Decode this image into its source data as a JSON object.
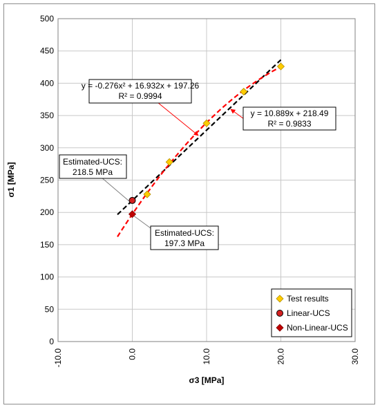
{
  "colors": {
    "test_marker": "#ffcc00",
    "linear_ucs_marker": "#d42020",
    "nonlinear_ucs_marker": "#c00000",
    "linear_fit_line": "#000000",
    "poly_fit_line": "#ff0000",
    "arrow": "#ff0000",
    "grid": "#c8c8c8"
  },
  "annotations": {
    "poly_eq_line1": "y = -0.276x² + 16.932x + 197.26",
    "poly_eq_line2": "R² = 0.9994",
    "lin_eq_line1": "y = 10.889x + 218.49",
    "lin_eq_line2": "R² = 0.9833",
    "est_ucs_linear_line1": "Estimated-UCS:",
    "est_ucs_linear_line2": "218.5 MPa",
    "est_ucs_nonlinear_line1": "Estimated-UCS:",
    "est_ucs_nonlinear_line2": "197.3 MPa"
  },
  "chart_data": {
    "type": "scatter",
    "title": "",
    "xlabel": "σ3 [MPa]",
    "ylabel": "σ1 [MPa]",
    "xlim": [
      -10,
      30
    ],
    "ylim": [
      0,
      500
    ],
    "x_ticks": [
      "-10.0",
      "0.0",
      "10.0",
      "20.0",
      "30.0"
    ],
    "y_ticks": [
      "0",
      "50",
      "100",
      "150",
      "200",
      "250",
      "300",
      "350",
      "400",
      "450",
      "500"
    ],
    "grid": true,
    "legend_position": "bottom-right",
    "series": [
      {
        "name": "Test results",
        "marker": "diamond",
        "points": [
          [
            2,
            228
          ],
          [
            5,
            278
          ],
          [
            10,
            338
          ],
          [
            15,
            387
          ],
          [
            20,
            426
          ]
        ]
      },
      {
        "name": "Linear-UCS",
        "marker": "circle",
        "points": [
          [
            0,
            218.5
          ]
        ]
      },
      {
        "name": "Non-Linear-UCS",
        "marker": "diamond",
        "points": [
          [
            0,
            197.3
          ]
        ]
      }
    ],
    "fits": [
      {
        "kind": "linear",
        "slope": 10.889,
        "intercept": 218.49,
        "x_range": [
          -2,
          20
        ],
        "style": "dashed",
        "color": "#000000"
      },
      {
        "kind": "polynomial",
        "coefficients": [
          -0.276,
          16.932,
          197.26
        ],
        "x_range": [
          -2,
          20
        ],
        "style": "dashed",
        "color": "#ff0000"
      }
    ]
  }
}
